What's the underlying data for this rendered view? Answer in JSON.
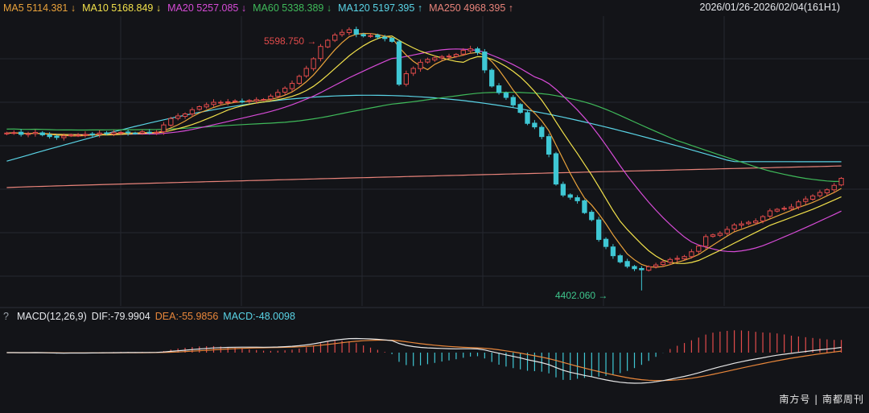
{
  "header": {
    "ma5": {
      "label": "MA5 5114.381",
      "arrow": "↓",
      "color": "#e9a23b"
    },
    "ma10": {
      "label": "MA10 5168.849",
      "arrow": "↓",
      "color": "#f2e14b"
    },
    "ma20": {
      "label": "MA20 5257.085",
      "arrow": "↓",
      "color": "#d64bd6"
    },
    "ma60": {
      "label": "MA60 5338.389",
      "arrow": "↓",
      "color": "#3fba5a"
    },
    "ma120": {
      "label": "MA120 5197.395",
      "arrow": "↑",
      "color": "#5ad4e6"
    },
    "ma250": {
      "label": "MA250 4968.395",
      "arrow": "↑",
      "color": "#e8837a"
    },
    "range": "2026/01/26-2026/02/04(161H1)"
  },
  "macd_header": {
    "question": "?",
    "params": "MACD(12,26,9)",
    "dif": "DIF:-79.9904",
    "dea": "DEA:-55.9856",
    "macd": "MACD:-48.0098"
  },
  "annotations": {
    "max": "5598.750",
    "min": "4402.060"
  },
  "watermark": "南方号 | 南都周刊",
  "colors": {
    "up": "#e24b4b",
    "down": "#3fc7d4",
    "dif": "#e6e6e6",
    "dea": "#e9873b",
    "grid": "#262830",
    "background": "#131418"
  },
  "chart_data": {
    "type": "candlestick",
    "price_range": [
      4350,
      5650
    ],
    "close": [
      5118,
      5120,
      5112,
      5115,
      5121,
      5110,
      5102,
      5098,
      5105,
      5110,
      5108,
      5112,
      5113,
      5118,
      5115,
      5120,
      5121,
      5119,
      5117,
      5124,
      5121,
      5122,
      5155,
      5184,
      5196,
      5205,
      5224,
      5238,
      5247,
      5258,
      5258,
      5260,
      5264,
      5262,
      5266,
      5270,
      5271,
      5286,
      5303,
      5322,
      5344,
      5376,
      5412,
      5456,
      5512,
      5540,
      5564,
      5576,
      5588,
      5568,
      5560,
      5561,
      5555,
      5548,
      5535,
      5340,
      5388,
      5412,
      5440,
      5453,
      5460,
      5466,
      5468,
      5476,
      5494,
      5501,
      5485,
      5405,
      5332,
      5302,
      5280,
      5246,
      5212,
      5162,
      5146,
      5102,
      5022,
      4886,
      4836,
      4826,
      4810,
      4756,
      4724,
      4634,
      4602,
      4560,
      4532,
      4512,
      4501,
      4496,
      4510,
      4518,
      4531,
      4543,
      4548,
      4556,
      4578,
      4604,
      4647,
      4655,
      4662,
      4680,
      4700,
      4705,
      4712,
      4718,
      4738,
      4764,
      4771,
      4776,
      4782,
      4805,
      4818,
      4832,
      4848,
      4860,
      4880,
      4912
    ],
    "volume_colors_note": "",
    "ma5_end": 5114.381,
    "ma10_end": 5168.849,
    "ma20_end": 5257.085,
    "ma60_end": 5338.389,
    "ma120_end": 5197.395,
    "ma250_end": 4968.395,
    "max_price": 5598.75,
    "min_price": 4402.06,
    "macd": {
      "params": [
        12,
        26,
        9
      ],
      "dif_end": -79.9904,
      "dea_end": -55.9856,
      "macd_end": -48.0098
    }
  }
}
